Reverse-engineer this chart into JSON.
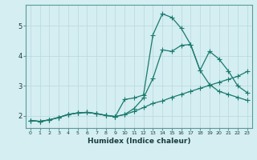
{
  "xlabel": "Humidex (Indice chaleur)",
  "bg_color": "#d4eef2",
  "line_color": "#1a7a6e",
  "grid_color": "#b8d8de",
  "xlim": [
    -0.5,
    23.5
  ],
  "ylim": [
    1.6,
    5.7
  ],
  "xticks": [
    0,
    1,
    2,
    3,
    4,
    5,
    6,
    7,
    8,
    9,
    10,
    11,
    12,
    13,
    14,
    15,
    16,
    17,
    18,
    19,
    20,
    21,
    22,
    23
  ],
  "yticks": [
    2,
    3,
    4,
    5
  ],
  "line1_x": [
    0,
    1,
    2,
    3,
    4,
    5,
    6,
    7,
    8,
    9,
    10,
    11,
    12,
    13,
    14,
    15,
    16,
    17,
    18,
    19,
    20,
    21,
    22,
    23
  ],
  "line1_y": [
    1.85,
    1.82,
    1.87,
    1.95,
    2.05,
    2.1,
    2.12,
    2.08,
    2.02,
    1.98,
    2.55,
    2.6,
    2.7,
    4.7,
    5.4,
    5.28,
    4.92,
    4.38,
    3.52,
    3.05,
    2.82,
    2.72,
    2.62,
    2.52
  ],
  "line2_x": [
    0,
    1,
    2,
    3,
    4,
    5,
    6,
    7,
    8,
    9,
    10,
    11,
    12,
    13,
    14,
    15,
    16,
    17,
    18,
    19,
    20,
    21,
    22,
    23
  ],
  "line2_y": [
    1.85,
    1.82,
    1.87,
    1.95,
    2.05,
    2.1,
    2.12,
    2.08,
    2.02,
    1.98,
    2.05,
    2.25,
    2.6,
    3.25,
    4.2,
    4.15,
    4.35,
    4.38,
    3.52,
    4.15,
    3.9,
    3.5,
    3.0,
    2.78
  ],
  "line3_x": [
    0,
    1,
    2,
    3,
    4,
    5,
    6,
    7,
    8,
    9,
    10,
    11,
    12,
    13,
    14,
    15,
    16,
    17,
    18,
    19,
    20,
    21,
    22,
    23
  ],
  "line3_y": [
    1.85,
    1.82,
    1.87,
    1.95,
    2.05,
    2.1,
    2.12,
    2.08,
    2.02,
    1.98,
    2.05,
    2.15,
    2.28,
    2.42,
    2.5,
    2.62,
    2.72,
    2.82,
    2.92,
    3.02,
    3.12,
    3.22,
    3.32,
    3.48
  ]
}
